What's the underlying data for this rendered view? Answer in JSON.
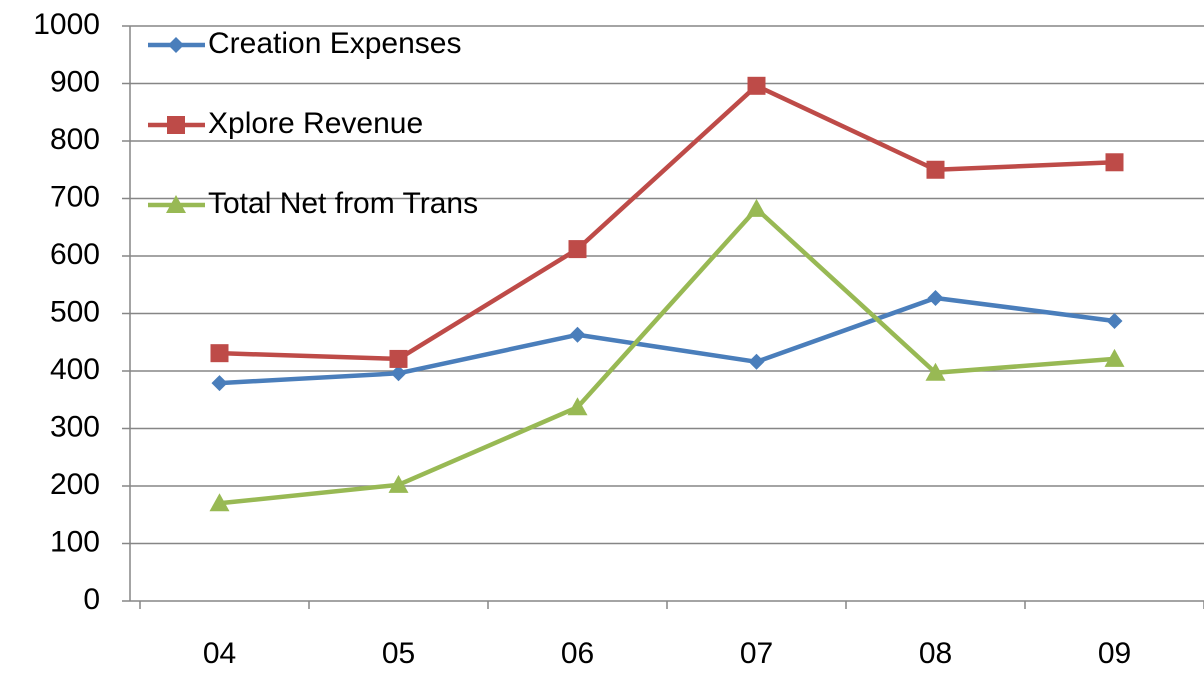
{
  "chart_data": {
    "type": "line",
    "categories": [
      "04",
      "05",
      "06",
      "07",
      "08",
      "09"
    ],
    "series": [
      {
        "name": "Creation Expenses",
        "color": "#4a7ebb",
        "marker": "diamond",
        "values": [
          379,
          396,
          463,
          416,
          527,
          487
        ]
      },
      {
        "name": "Xplore Revenue",
        "color": "#be4b48",
        "marker": "square",
        "values": [
          431,
          421,
          612,
          896,
          750,
          763
        ]
      },
      {
        "name": "Total Net from Trans",
        "color": "#98b954",
        "marker": "triangle",
        "values": [
          170,
          202,
          337,
          682,
          397,
          421
        ]
      }
    ],
    "ylim": [
      0,
      1000
    ],
    "yticks": [
      0,
      100,
      200,
      300,
      400,
      500,
      600,
      700,
      800,
      900,
      1000
    ],
    "grid": true,
    "legend": "upper left"
  }
}
